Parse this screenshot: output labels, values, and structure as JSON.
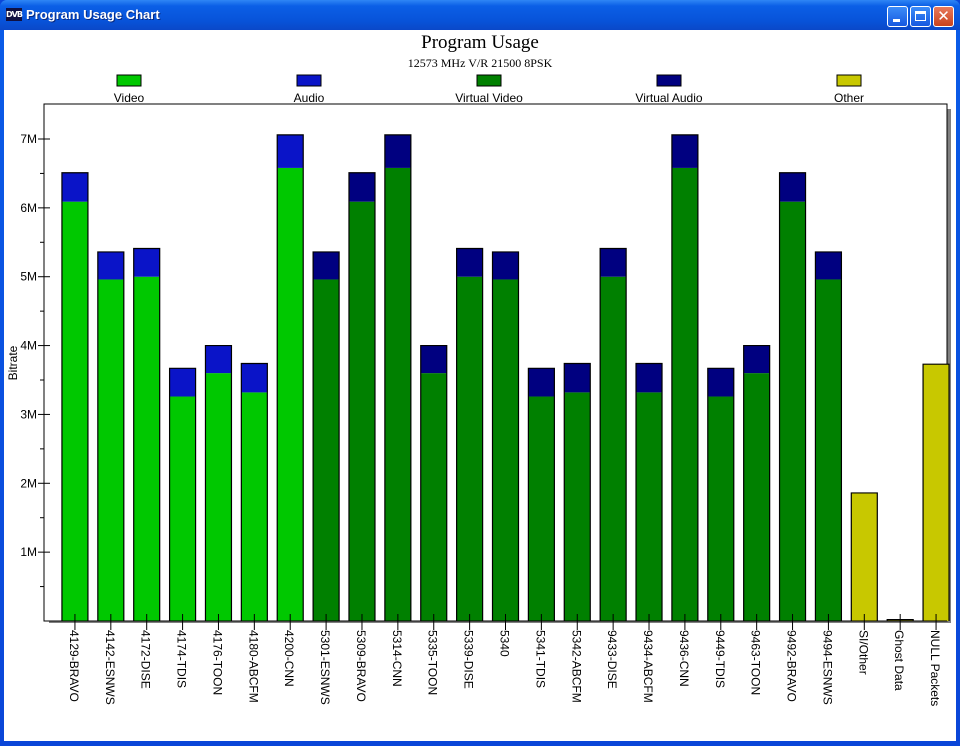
{
  "window": {
    "title": "Program Usage Chart",
    "icon": "dvb-logo-icon",
    "icon_text": "DVB"
  },
  "chart_data": {
    "type": "bar",
    "stacked": true,
    "title": "Program Usage",
    "subtitle": "12573 MHz V/R 21500 8PSK",
    "xlabel": "",
    "ylabel": "Bitrate",
    "ylim": [
      0,
      7500000
    ],
    "yticks": [
      1000000,
      2000000,
      3000000,
      4000000,
      5000000,
      6000000,
      7000000
    ],
    "ytick_labels": [
      "1M",
      "2M",
      "3M",
      "4M",
      "5M",
      "6M",
      "7M"
    ],
    "legend_position": "top",
    "legend": [
      {
        "name": "Video",
        "color": "#00c800"
      },
      {
        "name": "Audio",
        "color": "#0a14c8"
      },
      {
        "name": "Virtual Video",
        "color": "#008000"
      },
      {
        "name": "Virtual Audio",
        "color": "#000080"
      },
      {
        "name": "Other",
        "color": "#c8c800"
      }
    ],
    "categories": [
      "4129-BRAVO",
      "4142-ESNWS",
      "4172-DISE",
      "4174-TDIS",
      "4176-TOON",
      "4180-ABCFM",
      "4200-CNN",
      "5301-ESNWS",
      "5309-BRAVO",
      "5314-CNN",
      "5335-TOON",
      "5339-DISE",
      "5340",
      "5341-TDIS",
      "5342-ABCFM",
      "9433-DISE",
      "9434-ABCFM",
      "9436-CNN",
      "9449-TDIS",
      "9463-TOON",
      "9492-BRAVO",
      "9494-ESNWS",
      "SI/Other",
      "Ghost Data",
      "NULL Packets"
    ],
    "series": [
      {
        "name": "Video",
        "values": [
          6090000,
          4960000,
          5000000,
          3260000,
          3600000,
          3320000,
          6580000,
          0,
          0,
          0,
          0,
          0,
          0,
          0,
          0,
          0,
          0,
          0,
          0,
          0,
          0,
          0,
          0,
          0,
          0
        ]
      },
      {
        "name": "Audio",
        "values": [
          420000,
          400000,
          410000,
          410000,
          400000,
          420000,
          480000,
          0,
          0,
          0,
          0,
          0,
          0,
          0,
          0,
          0,
          0,
          0,
          0,
          0,
          0,
          0,
          0,
          0,
          0
        ]
      },
      {
        "name": "Virtual Video",
        "values": [
          0,
          0,
          0,
          0,
          0,
          0,
          0,
          4960000,
          6090000,
          6580000,
          3600000,
          5000000,
          4960000,
          3260000,
          3320000,
          5000000,
          3320000,
          6580000,
          3260000,
          3600000,
          6090000,
          4960000,
          0,
          0,
          0
        ]
      },
      {
        "name": "Virtual Audio",
        "values": [
          0,
          0,
          0,
          0,
          0,
          0,
          0,
          400000,
          420000,
          480000,
          400000,
          410000,
          400000,
          410000,
          420000,
          410000,
          420000,
          480000,
          410000,
          400000,
          420000,
          400000,
          0,
          0,
          0
        ]
      },
      {
        "name": "Other",
        "values": [
          0,
          0,
          0,
          0,
          0,
          0,
          0,
          0,
          0,
          0,
          0,
          0,
          0,
          0,
          0,
          0,
          0,
          0,
          0,
          0,
          0,
          0,
          1860000,
          20000,
          3730000
        ]
      }
    ],
    "grid": false
  }
}
